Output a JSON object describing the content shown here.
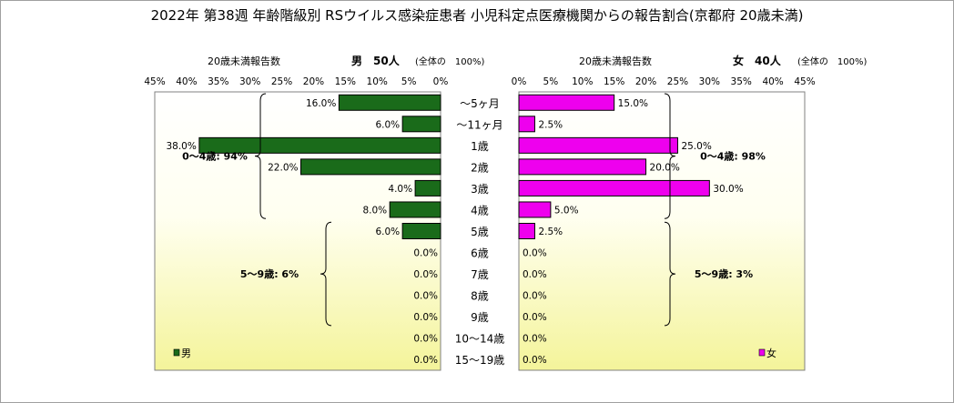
{
  "chart_data": {
    "type": "bar",
    "title": "2022年 第38週 年齢階級別 RSウイルス感染症患者 小児科定点医療機関からの報告割合(京都府 20歳未満)",
    "categories": [
      "～5ヶ月",
      "～11ヶ月",
      "1歳",
      "2歳",
      "3歳",
      "4歳",
      "5歳",
      "6歳",
      "7歳",
      "8歳",
      "9歳",
      "10～14歳",
      "15～19歳"
    ],
    "axis_ticks": [
      "45%",
      "40%",
      "35%",
      "30%",
      "25%",
      "20%",
      "15%",
      "10%",
      "5%",
      "0%"
    ],
    "axis_ticks_right": [
      "0%",
      "5%",
      "10%",
      "15%",
      "20%",
      "25%",
      "30%",
      "35%",
      "40%",
      "45%"
    ],
    "xlim": [
      0,
      45
    ],
    "series": [
      {
        "name": "男",
        "side": "left",
        "color": "#1a6b1a",
        "header_label": "20歳未満報告数",
        "header_count": "男　50人",
        "header_total": "(全体の　100%)",
        "values": [
          16.0,
          6.0,
          38.0,
          22.0,
          4.0,
          8.0,
          6.0,
          0.0,
          0.0,
          0.0,
          0.0,
          0.0,
          0.0
        ],
        "value_labels": [
          "16.0%",
          "6.0%",
          "38.0%",
          "22.0%",
          "4.0%",
          "8.0%",
          "6.0%",
          "0.0%",
          "0.0%",
          "0.0%",
          "0.0%",
          "0.0%",
          "0.0%"
        ],
        "groups": [
          {
            "label": "0～4歳: 94%",
            "from": 0,
            "to": 5
          },
          {
            "label": "5～9歳: 6%",
            "from": 6,
            "to": 10
          }
        ]
      },
      {
        "name": "女",
        "side": "right",
        "color": "#ee00ee",
        "header_label": "20歳未満報告数",
        "header_count": "女　40人",
        "header_total": "(全体の　100%)",
        "values": [
          15.0,
          2.5,
          25.0,
          20.0,
          30.0,
          5.0,
          2.5,
          0.0,
          0.0,
          0.0,
          0.0,
          0.0,
          0.0
        ],
        "value_labels": [
          "15.0%",
          "2.5%",
          "25.0%",
          "20.0%",
          "30.0%",
          "5.0%",
          "2.5%",
          "0.0%",
          "0.0%",
          "0.0%",
          "0.0%",
          "0.0%",
          "0.0%"
        ],
        "groups": [
          {
            "label": "0～4歳: 98%",
            "from": 0,
            "to": 5
          },
          {
            "label": "5～9歳: 3%",
            "from": 6,
            "to": 10
          }
        ]
      }
    ]
  }
}
